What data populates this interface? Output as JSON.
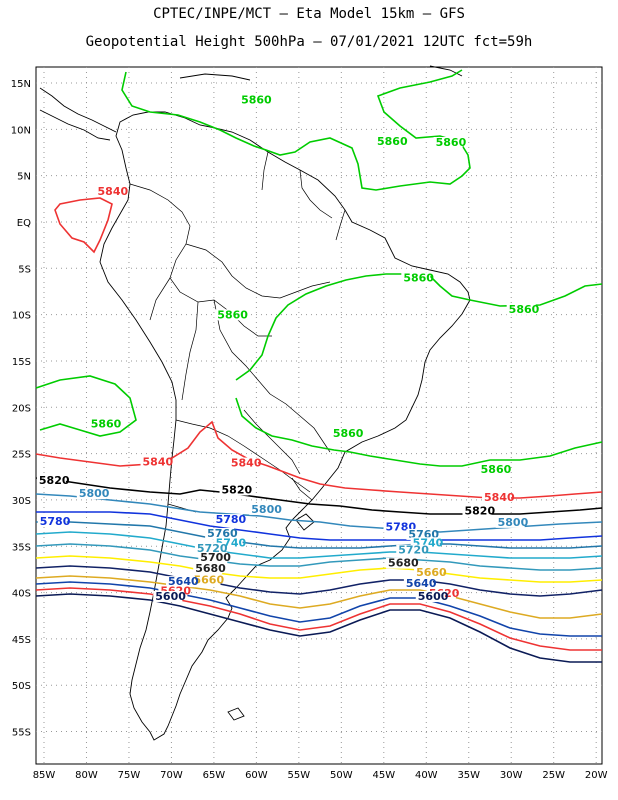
{
  "title_line1": "CPTEC/INPE/MCT –  Eta Model 15km – GFS",
  "title_line2": "Geopotential Height 500hPa – 07/01/2021 12UTC fct=59h",
  "lat_ticks": [
    "15N",
    "10N",
    "5N",
    "EQ",
    "5S",
    "10S",
    "15S",
    "20S",
    "25S",
    "30S",
    "35S",
    "40S",
    "45S",
    "50S",
    "55S"
  ],
  "lon_ticks": [
    "85W",
    "80W",
    "75W",
    "70W",
    "65W",
    "60W",
    "55W",
    "50W",
    "45W",
    "40W",
    "35W",
    "30W",
    "25W",
    "20W"
  ],
  "contours": [
    {
      "level": "5860",
      "color": "#00cc00"
    },
    {
      "level": "5840",
      "color": "#ee3333"
    },
    {
      "level": "5820",
      "color": "#000000"
    },
    {
      "level": "5800",
      "color": "#3388bb"
    },
    {
      "level": "5780",
      "color": "#1133dd"
    },
    {
      "level": "5760",
      "color": "#2277aa"
    },
    {
      "level": "5740",
      "color": "#22aacc"
    },
    {
      "level": "5720",
      "color": "#3399bb"
    },
    {
      "level": "5700",
      "color": "#ffee00"
    },
    {
      "level": "5680",
      "color": "#ddaa22"
    },
    {
      "level": "5660",
      "color": "#112266"
    },
    {
      "level": "5640",
      "color": "#1144aa"
    },
    {
      "level": "5620",
      "color": "#ee3333"
    },
    {
      "level": "5600",
      "color": "#0a1a55"
    }
  ],
  "contour_labels": [
    {
      "text": "5860",
      "color": "#00cc00",
      "lon": -61.8,
      "lat": 12.8
    },
    {
      "text": "5860",
      "color": "#00cc00",
      "lon": -45.8,
      "lat": 8.3
    },
    {
      "text": "5860",
      "color": "#00cc00",
      "lon": -38.9,
      "lat": 8.2
    },
    {
      "text": "5860",
      "color": "#00cc00",
      "lon": -42.7,
      "lat": -6.4
    },
    {
      "text": "5860",
      "color": "#00cc00",
      "lon": -64.6,
      "lat": -10.4
    },
    {
      "text": "5860",
      "color": "#00cc00",
      "lon": -30.3,
      "lat": -9.8
    },
    {
      "text": "5860",
      "color": "#00cc00",
      "lon": -79.5,
      "lat": -22.2
    },
    {
      "text": "5860",
      "color": "#00cc00",
      "lon": -51.0,
      "lat": -23.2
    },
    {
      "text": "5860",
      "color": "#00cc00",
      "lon": -33.6,
      "lat": -27.1
    },
    {
      "text": "5840",
      "color": "#ee3333",
      "lon": -78.7,
      "lat": 2.9
    },
    {
      "text": "5840",
      "color": "#ee3333",
      "lon": -73.4,
      "lat": -26.3
    },
    {
      "text": "5840",
      "color": "#ee3333",
      "lon": -63.0,
      "lat": -26.4
    },
    {
      "text": "5840",
      "color": "#ee3333",
      "lon": -33.2,
      "lat": -30.1
    },
    {
      "text": "5820",
      "color": "#000000",
      "lon": -85.6,
      "lat": -28.3
    },
    {
      "text": "5820",
      "color": "#000000",
      "lon": -64.1,
      "lat": -29.3
    },
    {
      "text": "5820",
      "color": "#000000",
      "lon": -35.5,
      "lat": -31.6
    },
    {
      "text": "5800",
      "color": "#3388bb",
      "lon": -80.9,
      "lat": -29.7
    },
    {
      "text": "5800",
      "color": "#3388bb",
      "lon": -60.6,
      "lat": -31.4
    },
    {
      "text": "5800",
      "color": "#3388bb",
      "lon": -31.6,
      "lat": -32.8
    },
    {
      "text": "5780",
      "color": "#1133dd",
      "lon": -85.5,
      "lat": -32.7
    },
    {
      "text": "5780",
      "color": "#1133dd",
      "lon": -64.8,
      "lat": -32.5
    },
    {
      "text": "5780",
      "color": "#1133dd",
      "lon": -44.8,
      "lat": -33.3
    },
    {
      "text": "5760",
      "color": "#2277aa",
      "lon": -65.8,
      "lat": -34.0
    },
    {
      "text": "5760",
      "color": "#2277aa",
      "lon": -42.1,
      "lat": -34.1
    },
    {
      "text": "5740",
      "color": "#22aacc",
      "lon": -64.8,
      "lat": -35.0
    },
    {
      "text": "5740",
      "color": "#22aacc",
      "lon": -41.6,
      "lat": -35.0
    },
    {
      "text": "5720",
      "color": "#3399bb",
      "lon": -67.0,
      "lat": -35.6
    },
    {
      "text": "5720",
      "color": "#3399bb",
      "lon": -43.3,
      "lat": -35.8
    },
    {
      "text": "5700",
      "color": "#222222",
      "lon": -66.6,
      "lat": -36.6
    },
    {
      "text": "5680",
      "color": "#222222",
      "lon": -67.2,
      "lat": -37.8
    },
    {
      "text": "5680",
      "color": "#222222",
      "lon": -44.5,
      "lat": -37.2
    },
    {
      "text": "5660",
      "color": "#ddaa22",
      "lon": -67.4,
      "lat": -39.0
    },
    {
      "text": "5660",
      "color": "#ddaa22",
      "lon": -41.2,
      "lat": -38.2
    },
    {
      "text": "5640",
      "color": "#1144aa",
      "lon": -70.4,
      "lat": -39.2
    },
    {
      "text": "5640",
      "color": "#1144aa",
      "lon": -42.4,
      "lat": -39.4
    },
    {
      "text": "5620",
      "color": "#ee3333",
      "lon": -71.3,
      "lat": -40.2
    },
    {
      "text": "5620",
      "color": "#ee3333",
      "lon": -39.7,
      "lat": -40.5
    },
    {
      "text": "5600",
      "color": "#0a1a55",
      "lon": -71.9,
      "lat": -40.8
    },
    {
      "text": "5600",
      "color": "#0a1a55",
      "lon": -41.0,
      "lat": -40.8
    }
  ]
}
